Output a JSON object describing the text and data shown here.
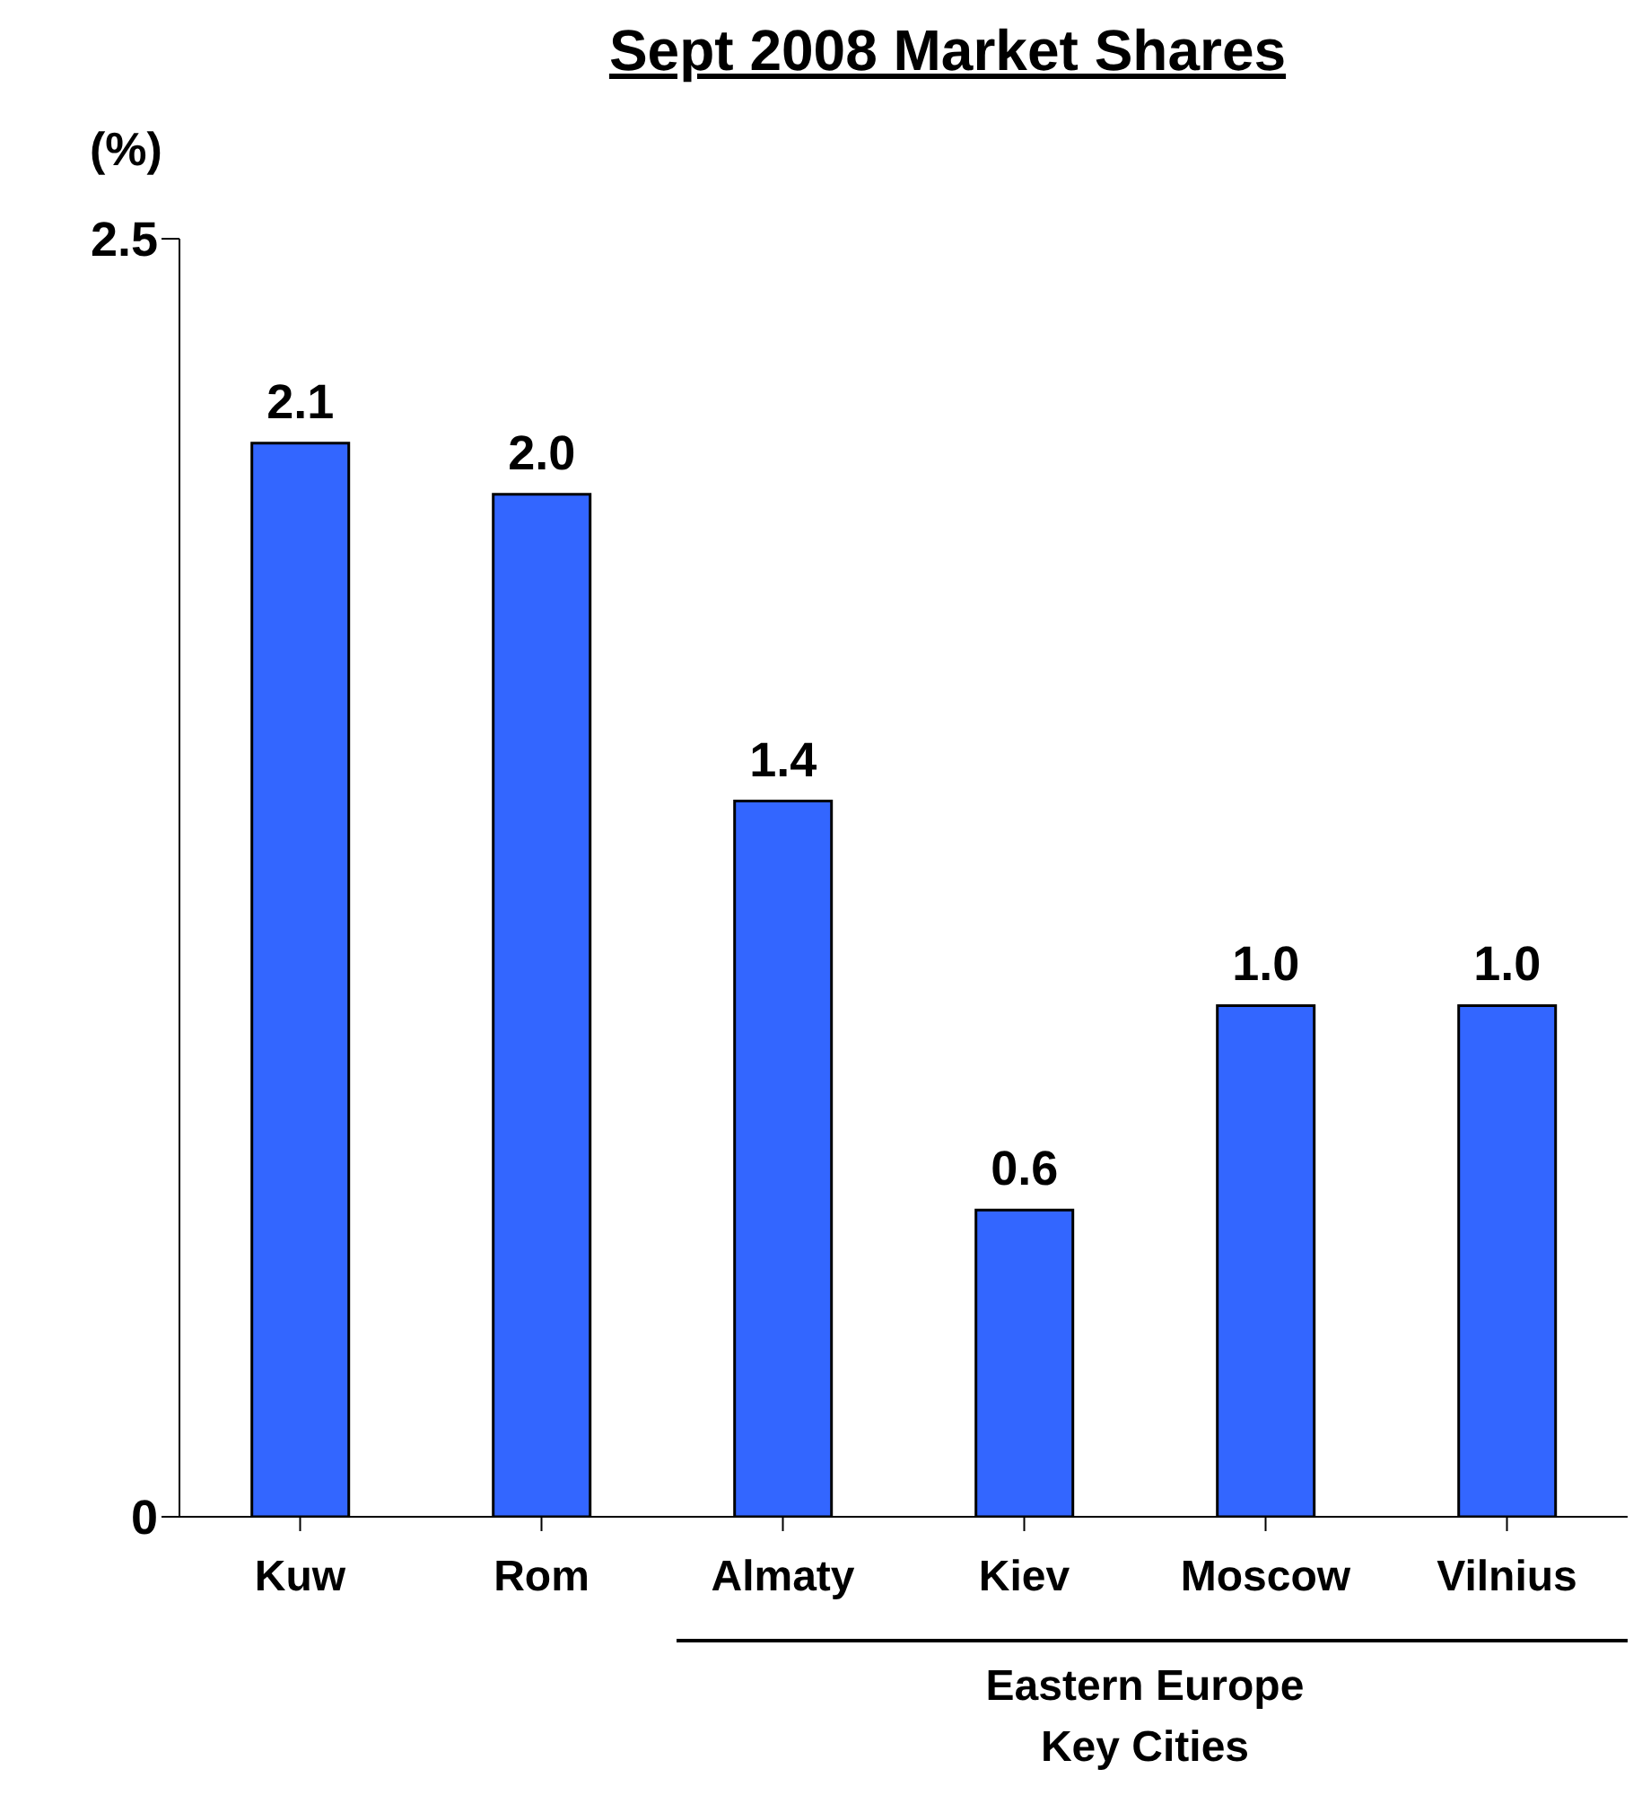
{
  "chart_data": {
    "type": "bar",
    "title": "Sept 2008 Market Shares",
    "ylabel": "(%)",
    "categories": [
      "Kuw",
      "Rom",
      "Almaty",
      "Kiev",
      "Moscow",
      "Vilnius"
    ],
    "values": [
      2.1,
      2.0,
      1.4,
      0.6,
      1.0,
      1.0
    ],
    "color": "#3366ff",
    "ylim": [
      0,
      2.5
    ],
    "yticks": [
      0,
      2.5
    ],
    "grid": false,
    "value_labels": [
      "2.1",
      "2.0",
      "1.4",
      "0.6",
      "1.0",
      "1.0"
    ],
    "annotations": [
      "Eastern Europe\nKey Cities"
    ]
  }
}
